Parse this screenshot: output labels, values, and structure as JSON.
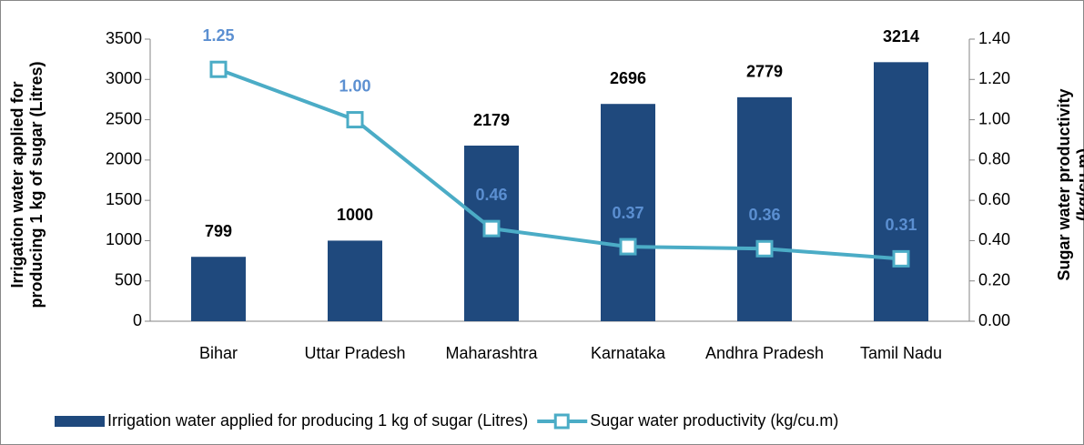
{
  "chart_data": {
    "type": "bar-line",
    "categories": [
      "Bihar",
      "Uttar Pradesh",
      "Maharashtra",
      "Karnataka",
      "Andhra Pradesh",
      "Tamil Nadu"
    ],
    "series": [
      {
        "name": "Irrigation water applied for producing 1 kg of sugar (Litres)",
        "type": "bar",
        "color": "#1f497d",
        "values": [
          799,
          1000,
          2179,
          2696,
          2779,
          3214
        ]
      },
      {
        "name": "Sugar water productivity (kg/cu.m)",
        "type": "line",
        "axis": "y2",
        "color": "#4bacc6",
        "values": [
          1.25,
          1.0,
          0.46,
          0.37,
          0.36,
          0.31
        ],
        "value_labels": [
          "1.25",
          "1.00",
          "0.46",
          "0.37",
          "0.36",
          "0.31"
        ]
      }
    ],
    "ylabel": "Irrigation water applied for producing 1 kg of sugar (Litres)",
    "y2label": "Sugar water productivity (kg/cu.m)",
    "ylim": [
      0,
      3500
    ],
    "yticks": [
      0,
      500,
      1000,
      1500,
      2000,
      2500,
      3000,
      3500
    ],
    "y2lim": [
      0,
      1.4
    ],
    "y2ticks": [
      {
        "value": 0,
        "label": "0.00"
      },
      {
        "value": 0.2,
        "label": "0.20"
      },
      {
        "value": 0.4,
        "label": "0.40"
      },
      {
        "value": 0.6,
        "label": "0.60"
      },
      {
        "value": 0.8,
        "label": "0.80"
      },
      {
        "value": 1.0,
        "label": "1.00"
      },
      {
        "value": 1.2,
        "label": "1.20"
      },
      {
        "value": 1.4,
        "label": "1.40"
      }
    ],
    "legend": "bottom"
  }
}
